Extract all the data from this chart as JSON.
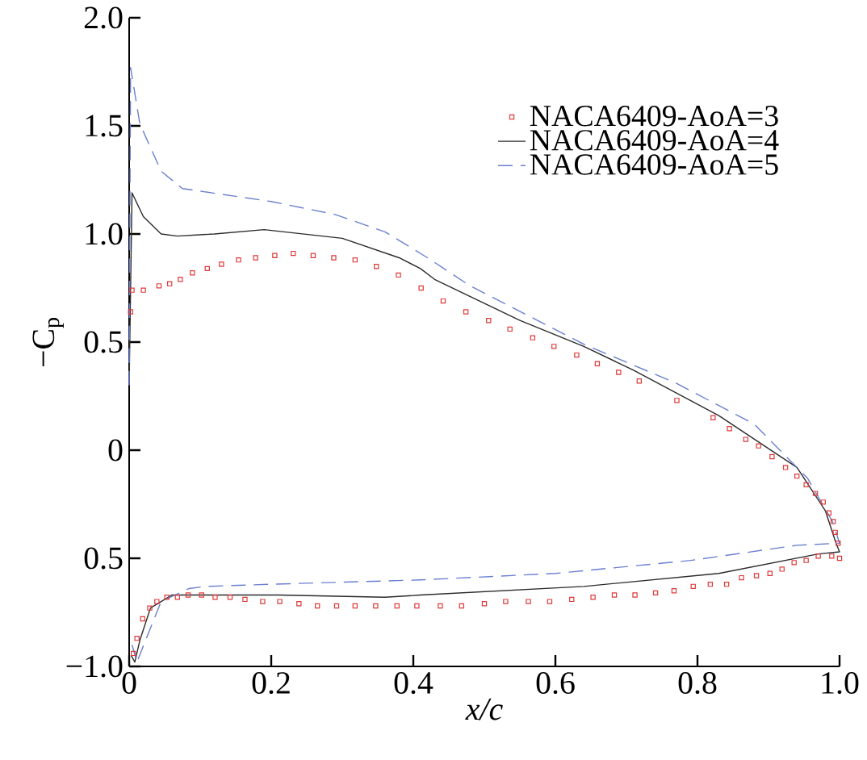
{
  "chart_data": {
    "type": "line",
    "xlabel": "x/c",
    "ylabel": "−C$_{p}$",
    "xlim": [
      0,
      1
    ],
    "ylim": [
      -1,
      2
    ],
    "xticks": [
      {
        "value": 0,
        "label": "0"
      },
      0.2,
      0.4,
      0.6,
      0.8,
      {
        "value": 1,
        "label": "1.0"
      }
    ],
    "yticks": [
      {
        "value": -1,
        "label": "−1.0"
      },
      {
        "value": -0.5,
        "label": "0.5"
      },
      {
        "value": 0,
        "label": "0"
      },
      {
        "value": 0.5,
        "label": "0.5"
      },
      {
        "value": 1,
        "label": "1.0"
      },
      {
        "value": 1.5,
        "label": "1.5"
      },
      {
        "value": 2,
        "label": "2.0"
      }
    ],
    "grid": false,
    "legend": "top right",
    "series": [
      {
        "name": "NACA6409-AoA=3",
        "type": "scatter",
        "marker": "square",
        "color": "#e03a3a",
        "x": [
          0.002,
          0.004,
          0.02,
          0.042,
          0.057,
          0.072,
          0.089,
          0.11,
          0.13,
          0.154,
          0.178,
          0.205,
          0.231,
          0.259,
          0.288,
          0.318,
          0.348,
          0.379,
          0.411,
          0.442,
          0.474,
          0.506,
          0.536,
          0.568,
          0.598,
          0.63,
          0.659,
          0.689,
          0.718,
          0.771,
          0.822,
          0.845,
          0.868,
          0.886,
          0.905,
          0.924,
          0.94,
          0.953,
          0.966,
          0.977,
          0.985,
          0.991,
          0.994,
          0.998,
          1.0,
          0.989,
          0.97,
          0.953,
          0.936,
          0.919,
          0.902,
          0.883,
          0.862,
          0.841,
          0.818,
          0.794,
          0.767,
          0.741,
          0.712,
          0.683,
          0.653,
          0.623,
          0.592,
          0.562,
          0.53,
          0.5,
          0.468,
          0.438,
          0.405,
          0.377,
          0.347,
          0.318,
          0.292,
          0.265,
          0.239,
          0.212,
          0.188,
          0.163,
          0.142,
          0.121,
          0.102,
          0.083,
          0.068,
          0.053,
          0.039,
          0.029,
          0.019,
          0.011,
          0.006
        ],
        "values": [
          0.64,
          0.74,
          0.74,
          0.76,
          0.77,
          0.79,
          0.82,
          0.84,
          0.86,
          0.88,
          0.89,
          0.9,
          0.91,
          0.9,
          0.89,
          0.88,
          0.85,
          0.81,
          0.75,
          0.69,
          0.64,
          0.6,
          0.56,
          0.52,
          0.48,
          0.44,
          0.4,
          0.36,
          0.32,
          0.23,
          0.15,
          0.1,
          0.05,
          0.02,
          -0.03,
          -0.08,
          -0.12,
          -0.16,
          -0.2,
          -0.24,
          -0.29,
          -0.33,
          -0.38,
          -0.43,
          -0.5,
          -0.49,
          -0.49,
          -0.51,
          -0.52,
          -0.55,
          -0.57,
          -0.58,
          -0.59,
          -0.62,
          -0.62,
          -0.63,
          -0.65,
          -0.66,
          -0.67,
          -0.67,
          -0.68,
          -0.69,
          -0.7,
          -0.7,
          -0.7,
          -0.71,
          -0.72,
          -0.72,
          -0.72,
          -0.72,
          -0.72,
          -0.72,
          -0.72,
          -0.72,
          -0.71,
          -0.7,
          -0.7,
          -0.69,
          -0.68,
          -0.68,
          -0.67,
          -0.67,
          -0.68,
          -0.68,
          -0.7,
          -0.73,
          -0.78,
          -0.87,
          -0.94
        ]
      },
      {
        "name": "NACA6409-AoA=4",
        "line_style": "solid",
        "color": "#2b2b2b",
        "x": [
          0.0,
          0.004,
          0.02,
          0.045,
          0.068,
          0.12,
          0.19,
          0.3,
          0.38,
          0.41,
          0.43,
          0.55,
          0.64,
          0.71,
          0.83,
          0.94,
          0.98,
          0.995,
          1.0,
          0.97,
          0.83,
          0.64,
          0.41,
          0.36,
          0.21,
          0.06,
          0.03,
          0.015,
          0.008,
          0.003
        ],
        "values": [
          0.3,
          1.19,
          1.08,
          1.0,
          0.99,
          1.0,
          1.02,
          0.98,
          0.89,
          0.84,
          0.79,
          0.6,
          0.48,
          0.37,
          0.16,
          -0.08,
          -0.28,
          -0.43,
          -0.47,
          -0.48,
          -0.57,
          -0.63,
          -0.67,
          -0.68,
          -0.67,
          -0.67,
          -0.73,
          -0.88,
          -0.98,
          -0.95
        ]
      },
      {
        "name": "NACA6409-AoA=5",
        "line_style": "dashed",
        "color": "#6a7fd0",
        "x": [
          0.0,
          0.002,
          0.015,
          0.045,
          0.075,
          0.2,
          0.29,
          0.36,
          0.42,
          0.48,
          0.64,
          0.77,
          0.88,
          0.955,
          0.99,
          1.0,
          0.94,
          0.79,
          0.6,
          0.41,
          0.2,
          0.107,
          0.084,
          0.045,
          0.023,
          0.011,
          0.004
        ],
        "values": [
          0.3,
          1.77,
          1.51,
          1.29,
          1.21,
          1.15,
          1.09,
          1.01,
          0.89,
          0.76,
          0.49,
          0.31,
          0.12,
          -0.13,
          -0.33,
          -0.43,
          -0.44,
          -0.51,
          -0.57,
          -0.6,
          -0.62,
          -0.63,
          -0.64,
          -0.7,
          -0.88,
          -0.98,
          -0.9
        ]
      }
    ]
  }
}
